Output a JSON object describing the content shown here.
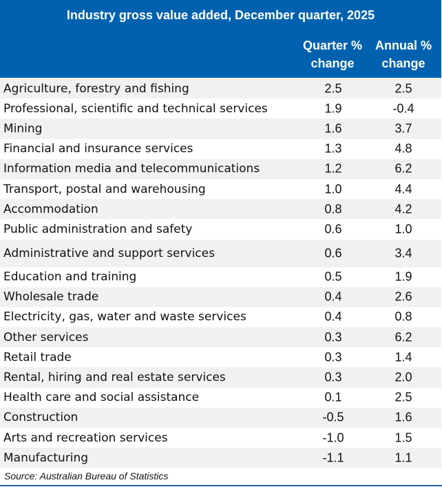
{
  "chart_data": {
    "type": "table",
    "title": "Industry gross value added, December quarter, 2025",
    "columns": [
      "Quarter % change",
      "Annual % change"
    ],
    "header_color": "#0062AE",
    "rows": [
      {
        "industry": "Agriculture, forestry and fishing",
        "quarter": "2.5",
        "annual": "2.5"
      },
      {
        "industry": "Professional, scientific and technical services",
        "quarter": "1.9",
        "annual": "-0.4"
      },
      {
        "industry": "Mining",
        "quarter": "1.6",
        "annual": "3.7"
      },
      {
        "industry": "Financial and insurance services",
        "quarter": "1.3",
        "annual": "4.8"
      },
      {
        "industry": "Information media and telecommunications",
        "quarter": "1.2",
        "annual": "6.2"
      },
      {
        "industry": "Transport, postal and warehousing",
        "quarter": "1.0",
        "annual": "4.4"
      },
      {
        "industry": "Accommodation",
        "quarter": "0.8",
        "annual": "4.2"
      },
      {
        "industry": "Public administration and safety",
        "quarter": "0.6",
        "annual": "1.0"
      },
      {
        "industry": "Administrative and support services",
        "quarter": "0.6",
        "annual": "3.4"
      },
      {
        "industry": "Education and training",
        "quarter": "0.5",
        "annual": "1.9"
      },
      {
        "industry": "Wholesale trade",
        "quarter": "0.4",
        "annual": "2.6"
      },
      {
        "industry": "Electricity, gas, water and waste services",
        "quarter": "0.4",
        "annual": "0.8"
      },
      {
        "industry": "Other services",
        "quarter": "0.3",
        "annual": "6.2"
      },
      {
        "industry": "Retail trade",
        "quarter": "0.3",
        "annual": "1.4"
      },
      {
        "industry": "Rental, hiring and real estate services",
        "quarter": "0.3",
        "annual": "2.0"
      },
      {
        "industry": "Health care and social assistance",
        "quarter": "0.1",
        "annual": "2.5"
      },
      {
        "industry": "Construction",
        "quarter": "-0.5",
        "annual": "1.6"
      },
      {
        "industry": "Arts and recreation services",
        "quarter": "-1.0",
        "annual": "1.5"
      },
      {
        "industry": "Manufacturing",
        "quarter": "-1.1",
        "annual": "1.1"
      }
    ],
    "source": "Source:  Australian Bureau of Statistics"
  }
}
